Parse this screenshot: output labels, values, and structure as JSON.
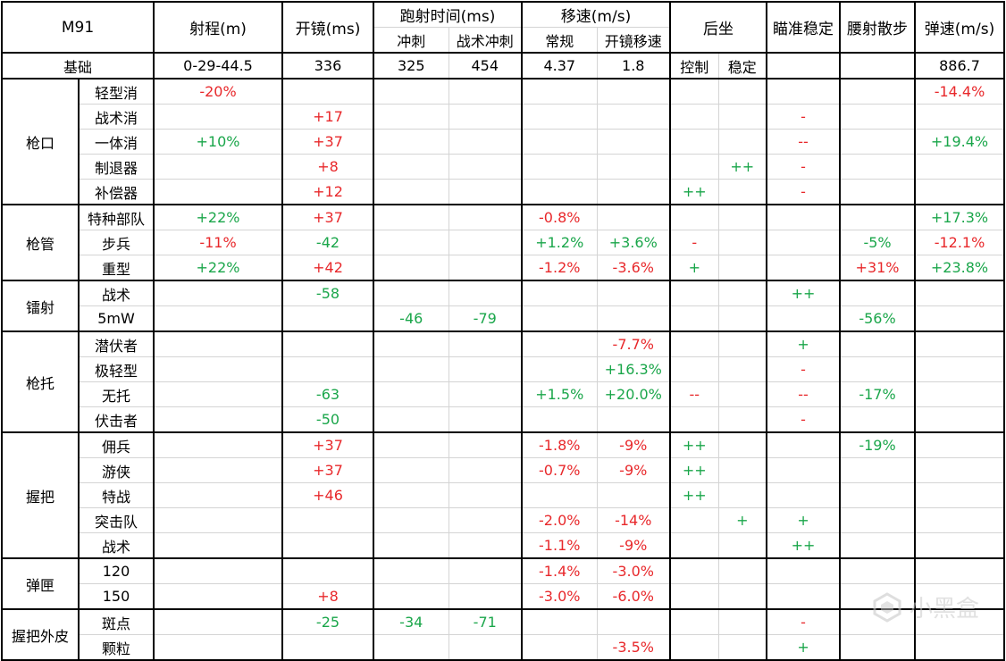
{
  "header": {
    "weapon": "M91",
    "range": "射程(m)",
    "ads": "开镜(ms)",
    "sprint_to_fire": "跑射时间(ms)",
    "sprint": "冲刺",
    "tac_sprint": "战术冲刺",
    "move_speed": "移速(m/s)",
    "normal": "常规",
    "ads_move": "开镜移速",
    "recoil": "后坐",
    "control": "控制",
    "stability": "稳定",
    "aim_stability": "瞄准稳定",
    "hip_spread": "腰射散步",
    "bullet_velocity": "弹速(m/s)"
  },
  "base": {
    "label": "基础",
    "range": "0-29-44.5",
    "ads": "336",
    "sprint": "325",
    "tac_sprint": "454",
    "normal": "4.37",
    "ads_move": "1.8",
    "bullet_velocity": "886.7"
  },
  "colors": {
    "positive": "#1aa64a",
    "negative": "#e8282b",
    "grid": "#d4d4d4",
    "border": "#000000"
  },
  "groups": [
    {
      "name": "枪口",
      "rows": [
        {
          "name": "轻型消",
          "range": "-20%",
          "ads": "",
          "sprint": "",
          "tac": "",
          "normal": "",
          "adsmove": "",
          "control": "",
          "stability": "",
          "aim": "",
          "hip": "",
          "vel": "-14.4%"
        },
        {
          "name": "战术消",
          "range": "",
          "ads": "+17",
          "sprint": "",
          "tac": "",
          "normal": "",
          "adsmove": "",
          "control": "",
          "stability": "",
          "aim": "-",
          "hip": "",
          "vel": ""
        },
        {
          "name": "一体消",
          "range": "+10%",
          "ads": "+37",
          "sprint": "",
          "tac": "",
          "normal": "",
          "adsmove": "",
          "control": "",
          "stability": "",
          "aim": "--",
          "hip": "",
          "vel": "+19.4%"
        },
        {
          "name": "制退器",
          "range": "",
          "ads": "+8",
          "sprint": "",
          "tac": "",
          "normal": "",
          "adsmove": "",
          "control": "",
          "stability": "++",
          "aim": "-",
          "hip": "",
          "vel": ""
        },
        {
          "name": "补偿器",
          "range": "",
          "ads": "+12",
          "sprint": "",
          "tac": "",
          "normal": "",
          "adsmove": "",
          "control": "++",
          "stability": "",
          "aim": "-",
          "hip": "",
          "vel": ""
        }
      ]
    },
    {
      "name": "枪管",
      "rows": [
        {
          "name": "特种部队",
          "range": "+22%",
          "ads": "+37",
          "sprint": "",
          "tac": "",
          "normal": "-0.8%",
          "adsmove": "",
          "control": "",
          "stability": "",
          "aim": "",
          "hip": "",
          "vel": "+17.3%"
        },
        {
          "name": "步兵",
          "range": "-11%",
          "ads": "-42",
          "sprint": "",
          "tac": "",
          "normal": "+1.2%",
          "adsmove": "+3.6%",
          "control": "-",
          "stability": "",
          "aim": "",
          "hip": "-5%",
          "vel": "-12.1%"
        },
        {
          "name": "重型",
          "range": "+22%",
          "ads": "+42",
          "sprint": "",
          "tac": "",
          "normal": "-1.2%",
          "adsmove": "-3.6%",
          "control": "+",
          "stability": "",
          "aim": "",
          "hip": "+31%",
          "vel": "+23.8%"
        }
      ]
    },
    {
      "name": "镭射",
      "rows": [
        {
          "name": "战术",
          "range": "",
          "ads": "-58",
          "sprint": "",
          "tac": "",
          "normal": "",
          "adsmove": "",
          "control": "",
          "stability": "",
          "aim": "++",
          "hip": "",
          "vel": ""
        },
        {
          "name": "5mW",
          "range": "",
          "ads": "",
          "sprint": "-46",
          "tac": "-79",
          "normal": "",
          "adsmove": "",
          "control": "",
          "stability": "",
          "aim": "",
          "hip": "-56%",
          "vel": ""
        }
      ]
    },
    {
      "name": "枪托",
      "rows": [
        {
          "name": "潜伏者",
          "range": "",
          "ads": "",
          "sprint": "",
          "tac": "",
          "normal": "",
          "adsmove": "-7.7%",
          "control": "",
          "stability": "",
          "aim": "+",
          "hip": "",
          "vel": ""
        },
        {
          "name": "极轻型",
          "range": "",
          "ads": "",
          "sprint": "",
          "tac": "",
          "normal": "",
          "adsmove": "+16.3%",
          "control": "",
          "stability": "",
          "aim": "-",
          "hip": "",
          "vel": ""
        },
        {
          "name": "无托",
          "range": "",
          "ads": "-63",
          "sprint": "",
          "tac": "",
          "normal": "+1.5%",
          "adsmove": "+20.0%",
          "control": "--",
          "stability": "",
          "aim": "--",
          "hip": "-17%",
          "vel": ""
        },
        {
          "name": "伏击者",
          "range": "",
          "ads": "-50",
          "sprint": "",
          "tac": "",
          "normal": "",
          "adsmove": "",
          "control": "",
          "stability": "",
          "aim": "-",
          "hip": "",
          "vel": ""
        }
      ]
    },
    {
      "name": "握把",
      "rows": [
        {
          "name": "佣兵",
          "range": "",
          "ads": "+37",
          "sprint": "",
          "tac": "",
          "normal": "-1.8%",
          "adsmove": "-9%",
          "control": "++",
          "stability": "",
          "aim": "",
          "hip": "-19%",
          "vel": ""
        },
        {
          "name": "游侠",
          "range": "",
          "ads": "+37",
          "sprint": "",
          "tac": "",
          "normal": "-0.7%",
          "adsmove": "-9%",
          "control": "++",
          "stability": "",
          "aim": "",
          "hip": "",
          "vel": ""
        },
        {
          "name": "特战",
          "range": "",
          "ads": "+46",
          "sprint": "",
          "tac": "",
          "normal": "",
          "adsmove": "",
          "control": "++",
          "stability": "",
          "aim": "",
          "hip": "",
          "vel": ""
        },
        {
          "name": "突击队",
          "range": "",
          "ads": "",
          "sprint": "",
          "tac": "",
          "normal": "-2.0%",
          "adsmove": "-14%",
          "control": "",
          "stability": "+",
          "aim": "+",
          "hip": "",
          "vel": ""
        },
        {
          "name": "战术",
          "range": "",
          "ads": "",
          "sprint": "",
          "tac": "",
          "normal": "-1.1%",
          "adsmove": "-9%",
          "control": "",
          "stability": "",
          "aim": "++",
          "hip": "",
          "vel": ""
        }
      ]
    },
    {
      "name": "弹匣",
      "rows": [
        {
          "name": "120",
          "range": "",
          "ads": "",
          "sprint": "",
          "tac": "",
          "normal": "-1.4%",
          "adsmove": "-3.0%",
          "control": "",
          "stability": "",
          "aim": "",
          "hip": "",
          "vel": ""
        },
        {
          "name": "150",
          "range": "",
          "ads": "+8",
          "sprint": "",
          "tac": "",
          "normal": "-3.0%",
          "adsmove": "-6.0%",
          "control": "",
          "stability": "",
          "aim": "",
          "hip": "",
          "vel": ""
        }
      ]
    },
    {
      "name": "握把外皮",
      "rows": [
        {
          "name": "斑点",
          "range": "",
          "ads": "-25",
          "sprint": "-34",
          "tac": "-71",
          "normal": "",
          "adsmove": "",
          "control": "",
          "stability": "",
          "aim": "-",
          "hip": "",
          "vel": ""
        },
        {
          "name": "颗粒",
          "range": "",
          "ads": "",
          "sprint": "",
          "tac": "",
          "normal": "",
          "adsmove": "-3.5%",
          "control": "",
          "stability": "",
          "aim": "+",
          "hip": "",
          "vel": ""
        }
      ]
    }
  ],
  "watermark": {
    "text": "小黑盒",
    "icon": "xiaoheihe-logo-icon"
  }
}
